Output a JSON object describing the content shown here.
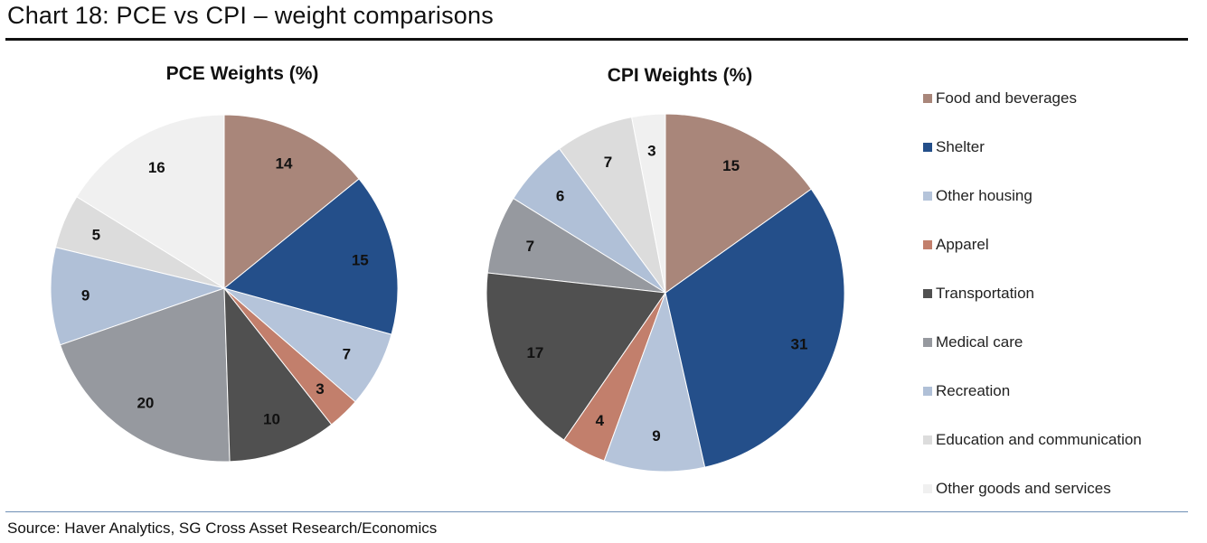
{
  "header": {
    "title": "Chart 18: PCE vs CPI – weight comparisons"
  },
  "footer": {
    "source": "Source: Haver Analytics, SG Cross Asset Research/Economics"
  },
  "chart_data": [
    {
      "type": "pie",
      "title": "PCE Weights (%)",
      "categories": [
        "Food and beverages",
        "Shelter",
        "Other housing",
        "Apparel",
        "Transportation",
        "Medical care",
        "Recreation",
        "Education and communication",
        "Other goods and services"
      ],
      "values": [
        14,
        15,
        7,
        3,
        10,
        20,
        9,
        5,
        16
      ],
      "colors": [
        "#a9867a",
        "#244f8a",
        "#b5c4da",
        "#c27f6c",
        "#505050",
        "#96999f",
        "#b0c0d7",
        "#dcdcdc",
        "#f0f0f0"
      ],
      "legend": "right"
    },
    {
      "type": "pie",
      "title": "CPI Weights (%)",
      "categories": [
        "Food and beverages",
        "Shelter",
        "Other housing",
        "Apparel",
        "Transportation",
        "Medical care",
        "Recreation",
        "Education and communication",
        "Other goods and services"
      ],
      "values": [
        15,
        31,
        9,
        4,
        17,
        7,
        6,
        7,
        3
      ],
      "colors": [
        "#a9867a",
        "#244f8a",
        "#b5c4da",
        "#c27f6c",
        "#505050",
        "#96999f",
        "#b0c0d7",
        "#dcdcdc",
        "#f0f0f0"
      ],
      "legend": "right"
    }
  ]
}
